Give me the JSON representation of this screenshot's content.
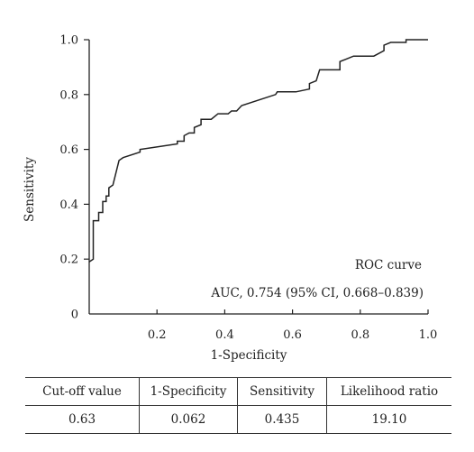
{
  "chart_data": {
    "type": "line",
    "title": "",
    "xlabel": "1-Specificity",
    "ylabel": "Sensitivity",
    "xlim": [
      0,
      1
    ],
    "ylim": [
      0,
      1
    ],
    "x_ticks": [
      "0.2",
      "0.4",
      "0.6",
      "0.8",
      "1.0"
    ],
    "y_ticks": [
      "0",
      "0.2",
      "0.4",
      "0.6",
      "0.8",
      "1.0"
    ],
    "grid": false,
    "legend": "none",
    "annotations": [
      "ROC curve",
      "AUC, 0.754 (95% CI, 0.668–0.839)"
    ],
    "series": [
      {
        "points": [
          [
            0,
            0.19
          ],
          [
            0.012,
            0.2
          ],
          [
            0.012,
            0.34
          ],
          [
            0.028,
            0.34
          ],
          [
            0.028,
            0.37
          ],
          [
            0.04,
            0.37
          ],
          [
            0.04,
            0.41
          ],
          [
            0.05,
            0.41
          ],
          [
            0.05,
            0.43
          ],
          [
            0.058,
            0.43
          ],
          [
            0.058,
            0.46
          ],
          [
            0.07,
            0.47
          ],
          [
            0.088,
            0.56
          ],
          [
            0.1,
            0.57
          ],
          [
            0.15,
            0.59
          ],
          [
            0.15,
            0.6
          ],
          [
            0.26,
            0.62
          ],
          [
            0.26,
            0.63
          ],
          [
            0.28,
            0.63
          ],
          [
            0.28,
            0.65
          ],
          [
            0.295,
            0.66
          ],
          [
            0.31,
            0.66
          ],
          [
            0.31,
            0.68
          ],
          [
            0.33,
            0.69
          ],
          [
            0.33,
            0.71
          ],
          [
            0.36,
            0.71
          ],
          [
            0.38,
            0.73
          ],
          [
            0.41,
            0.73
          ],
          [
            0.42,
            0.74
          ],
          [
            0.435,
            0.74
          ],
          [
            0.45,
            0.76
          ],
          [
            0.55,
            0.8
          ],
          [
            0.555,
            0.81
          ],
          [
            0.61,
            0.81
          ],
          [
            0.65,
            0.82
          ],
          [
            0.65,
            0.84
          ],
          [
            0.67,
            0.85
          ],
          [
            0.68,
            0.89
          ],
          [
            0.74,
            0.89
          ],
          [
            0.74,
            0.92
          ],
          [
            0.78,
            0.94
          ],
          [
            0.84,
            0.94
          ],
          [
            0.87,
            0.96
          ],
          [
            0.87,
            0.98
          ],
          [
            0.89,
            0.99
          ],
          [
            0.935,
            0.99
          ],
          [
            0.935,
            1.0
          ],
          [
            1.0,
            1.0
          ]
        ]
      }
    ]
  },
  "table": {
    "headers": [
      "Cut-off value",
      "1-Specificity",
      "Sensitivity",
      "Likelihood ratio"
    ],
    "rows": [
      [
        "0.63",
        "0.062",
        "0.435",
        "19.10"
      ]
    ]
  },
  "colors": {
    "curve": "#222222",
    "axis": "#222222"
  }
}
